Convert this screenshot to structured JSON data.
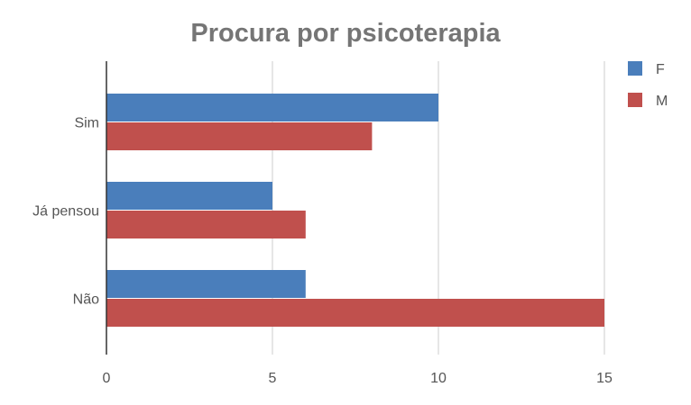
{
  "chart_data": {
    "type": "bar",
    "orientation": "horizontal",
    "title": "Procura por psicoterapia",
    "xlabel": "",
    "ylabel": "",
    "categories": [
      "Sim",
      "Já pensou",
      "Não"
    ],
    "series": [
      {
        "name": "F",
        "color": "#4a7ebb",
        "values": [
          10,
          5,
          6
        ]
      },
      {
        "name": "M",
        "color": "#c0504d",
        "values": [
          8,
          6,
          15
        ]
      }
    ],
    "xlim": [
      0,
      17
    ],
    "xticks": [
      "0",
      "5",
      "10",
      "15"
    ],
    "grid": true,
    "legend_position": "top-right"
  }
}
